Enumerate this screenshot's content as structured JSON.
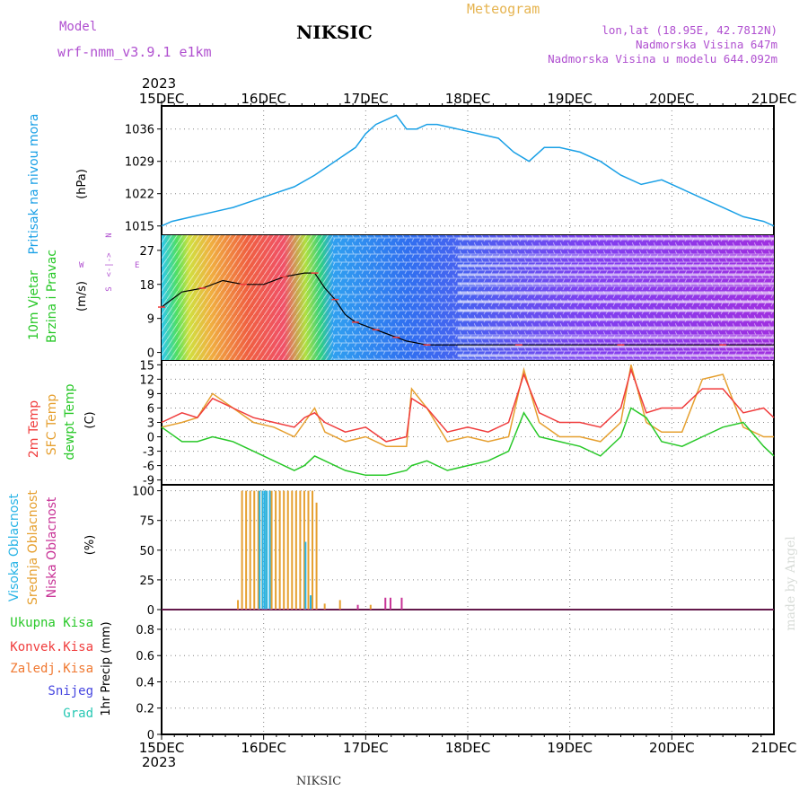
{
  "header": {
    "model_label": "Model",
    "model_name": "wrf-nmm_v3.9.1 e1km",
    "station": "NIKSIC",
    "product": "Meteogram",
    "lonlat": "lon,lat (18.95E, 42.7812N)",
    "elevation": "Nadmorska Visina 647m",
    "model_elevation": "Nadmorska Visina u modelu 644.092m",
    "footer_station": "NIKSIC",
    "watermark": "made by Angel"
  },
  "colors": {
    "pressure": "#1aa0e6",
    "temp2m": "#f03c3c",
    "sfc_temp": "#e6a030",
    "dewpt": "#28c828",
    "high_cloud": "#28b4e6",
    "mid_cloud": "#e6a030",
    "low_cloud": "#c83296",
    "purple_text": "#b050d0",
    "orange_text": "#e6b450"
  },
  "time_axis": {
    "year": "2023",
    "ticks": [
      "15DEC",
      "16DEC",
      "17DEC",
      "18DEC",
      "19DEC",
      "20DEC",
      "21DEC"
    ]
  },
  "panels": {
    "pressure": {
      "title": "Pritisak na nivou mora",
      "unit": "(hPa)",
      "ticks": [
        "1015",
        "1022",
        "1029",
        "1036"
      ]
    },
    "wind": {
      "title1": "10m Vjetar",
      "title2": "Brzina i Pravac",
      "unit": "(m/s)",
      "ticks": [
        "0",
        "9",
        "18",
        "27"
      ],
      "compass": {
        "n": "N",
        "s": "S",
        "w": "W",
        "e": "E",
        "arrow": "<-|->"
      }
    },
    "temp": {
      "title1": "2m Temp",
      "title2": "SFC Temp",
      "title3": "dewpt Temp",
      "unit": "(C)",
      "ticks": [
        "-9",
        "-6",
        "-3",
        "0",
        "3",
        "6",
        "9",
        "12",
        "15"
      ]
    },
    "cloud": {
      "title1": "Visoka Oblacnost",
      "title2": "Srednja Oblacnost",
      "title3": "Niska Oblacnost",
      "unit": "(%)",
      "ticks": [
        "0",
        "25",
        "50",
        "75",
        "100"
      ]
    },
    "precip": {
      "labels": [
        "Ukupna Kisa",
        "Konvek.Kisa",
        "Zaledj.Kisa",
        "Snijeg",
        "Grad"
      ],
      "unit": "1hr Precip (mm)",
      "ticks": [
        "0",
        "0.2",
        "0.4",
        "0.6",
        "0.8"
      ]
    }
  },
  "chart_data": [
    {
      "type": "line",
      "name": "pressure",
      "ylim": [
        1013,
        1041
      ],
      "x_range_days": [
        0,
        6
      ],
      "series": [
        {
          "name": "Pritisak na nivou mora",
          "x": [
            0,
            0.1,
            0.3,
            0.5,
            0.7,
            0.9,
            1.1,
            1.3,
            1.5,
            1.7,
            1.9,
            2.0,
            2.1,
            2.2,
            2.3,
            2.4,
            2.5,
            2.6,
            2.7,
            2.9,
            3.1,
            3.3,
            3.45,
            3.6,
            3.75,
            3.9,
            4.1,
            4.3,
            4.5,
            4.7,
            4.9,
            5.1,
            5.3,
            5.5,
            5.7,
            5.9,
            6.0
          ],
          "y": [
            1015,
            1016,
            1017,
            1018,
            1019,
            1020.5,
            1022,
            1023.5,
            1026,
            1029,
            1032,
            1035,
            1037,
            1038,
            1039,
            1036,
            1036,
            1037,
            1037,
            1036,
            1035,
            1034,
            1031,
            1029,
            1032,
            1032,
            1031,
            1029,
            1026,
            1024,
            1025,
            1023,
            1021,
            1019,
            1017,
            1016,
            1015
          ]
        }
      ]
    },
    {
      "type": "line",
      "name": "wind_speed",
      "ylim": [
        -2,
        31
      ],
      "series": [
        {
          "name": "10m Vjetar",
          "x": [
            0,
            0.2,
            0.4,
            0.6,
            0.8,
            1.0,
            1.2,
            1.4,
            1.5,
            1.6,
            1.7,
            1.8,
            1.9,
            2.0,
            2.1,
            2.2,
            2.3,
            2.4,
            2.6,
            3.0,
            3.5,
            4.0,
            4.5,
            5.0,
            5.5,
            6.0
          ],
          "y": [
            12,
            16,
            17,
            19,
            18,
            18,
            20,
            21,
            21,
            17,
            14,
            10,
            8,
            7,
            6,
            5,
            4,
            3,
            2,
            2,
            2,
            2,
            2,
            2,
            2,
            2
          ]
        }
      ]
    },
    {
      "type": "line",
      "name": "temperature",
      "ylim": [
        -10,
        16
      ],
      "series": [
        {
          "name": "2m Temp",
          "x": [
            0,
            0.2,
            0.35,
            0.5,
            0.7,
            0.9,
            1.1,
            1.3,
            1.4,
            1.5,
            1.6,
            1.8,
            2.0,
            2.2,
            2.4,
            2.45,
            2.6,
            2.8,
            3.0,
            3.2,
            3.4,
            3.55,
            3.7,
            3.9,
            4.1,
            4.3,
            4.5,
            4.6,
            4.75,
            4.9,
            5.1,
            5.3,
            5.5,
            5.7,
            5.9,
            6.0
          ],
          "y": [
            3,
            5,
            4,
            8,
            6,
            4,
            3,
            2,
            4,
            5,
            3,
            1,
            2,
            -1,
            0,
            8,
            6,
            1,
            2,
            1,
            3,
            13,
            5,
            3,
            3,
            2,
            6,
            14,
            5,
            6,
            6,
            10,
            10,
            5,
            6,
            4
          ]
        },
        {
          "name": "SFC Temp",
          "x": [
            0,
            0.2,
            0.35,
            0.5,
            0.7,
            0.9,
            1.1,
            1.3,
            1.4,
            1.5,
            1.6,
            1.8,
            2.0,
            2.2,
            2.4,
            2.45,
            2.6,
            2.8,
            3.0,
            3.2,
            3.4,
            3.55,
            3.7,
            3.9,
            4.1,
            4.3,
            4.5,
            4.6,
            4.75,
            4.9,
            5.1,
            5.3,
            5.5,
            5.7,
            5.9,
            6.0
          ],
          "y": [
            2,
            3,
            4,
            9,
            6,
            3,
            2,
            0,
            3,
            6,
            1,
            -1,
            0,
            -2,
            -2,
            10,
            6,
            -1,
            0,
            -1,
            0,
            14,
            3,
            0,
            0,
            -1,
            3,
            15,
            3,
            1,
            1,
            12,
            13,
            2,
            0,
            0
          ]
        },
        {
          "name": "dewpt Temp",
          "x": [
            0,
            0.2,
            0.35,
            0.5,
            0.7,
            0.9,
            1.1,
            1.3,
            1.4,
            1.5,
            1.6,
            1.8,
            2.0,
            2.2,
            2.4,
            2.45,
            2.6,
            2.8,
            3.0,
            3.2,
            3.4,
            3.55,
            3.7,
            3.9,
            4.1,
            4.3,
            4.5,
            4.6,
            4.75,
            4.9,
            5.1,
            5.3,
            5.5,
            5.7,
            5.9,
            6.0
          ],
          "y": [
            2,
            -1,
            -1,
            0,
            -1,
            -3,
            -5,
            -7,
            -6,
            -4,
            -5,
            -7,
            -8,
            -8,
            -7,
            -6,
            -5,
            -7,
            -6,
            -5,
            -3,
            5,
            0,
            -1,
            -2,
            -4,
            0,
            6,
            4,
            -1,
            -2,
            0,
            2,
            3,
            -2,
            -4
          ]
        }
      ]
    },
    {
      "type": "bar",
      "name": "cloud_cover",
      "ylim": [
        0,
        105
      ],
      "series": [
        {
          "name": "Srednja Oblacnost",
          "x": [
            0.75,
            0.79,
            0.83,
            0.87,
            0.91,
            0.95,
            0.99,
            1.03,
            1.08,
            1.12,
            1.16,
            1.2,
            1.24,
            1.28,
            1.32,
            1.36,
            1.4,
            1.44,
            1.48,
            1.52,
            1.6,
            1.75,
            2.05
          ],
          "values": [
            8,
            100,
            100,
            100,
            100,
            100,
            100,
            100,
            100,
            100,
            100,
            100,
            100,
            100,
            100,
            100,
            100,
            100,
            100,
            90,
            5,
            8,
            4
          ]
        },
        {
          "name": "Visoka Oblacnost",
          "x": [
            0.95,
            0.98,
            1.0,
            1.02,
            1.05,
            1.4,
            1.45
          ],
          "values": [
            100,
            100,
            100,
            100,
            100,
            57,
            12
          ]
        },
        {
          "name": "Niska Oblacnost",
          "x": [
            1.9,
            2.17,
            2.22,
            2.33
          ],
          "values": [
            4,
            10,
            10,
            10
          ]
        }
      ]
    },
    {
      "type": "bar",
      "name": "precipitation",
      "ylim": [
        0,
        0.95
      ],
      "series": [
        {
          "name": "Ukupna Kisa",
          "x": [],
          "values": []
        }
      ]
    }
  ]
}
